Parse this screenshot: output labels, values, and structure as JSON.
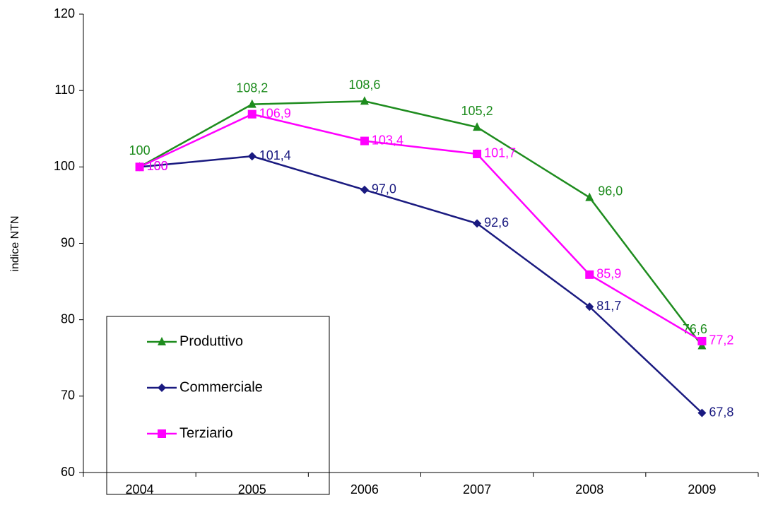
{
  "chart_data": {
    "type": "line",
    "y_label": "indice NTN",
    "categories": [
      "2004",
      "2005",
      "2006",
      "2007",
      "2008",
      "2009"
    ],
    "series": [
      {
        "name": "Produttivo",
        "color": "#1e8c1e",
        "values": [
          100,
          108.2,
          108.6,
          105.2,
          96.0,
          76.6
        ],
        "value_labels": [
          "100",
          "108,2",
          "108,6",
          "105,2",
          "96,0",
          "76,6"
        ]
      },
      {
        "name": "Commerciale",
        "color": "#1a1a80",
        "values": [
          100,
          101.4,
          97.0,
          92.6,
          81.7,
          67.8
        ],
        "value_labels": [
          "100",
          "101,4",
          "97,0",
          "92,6",
          "81,7",
          "67,8"
        ]
      },
      {
        "name": "Terziario",
        "color": "#ff00ff",
        "values": [
          100,
          106.9,
          103.4,
          101.7,
          85.9,
          77.2
        ],
        "value_labels": [
          "100",
          "106,9",
          "103,4",
          "101,7",
          "85,9",
          "77,2"
        ]
      }
    ],
    "ylim": [
      60,
      120
    ],
    "yticks": [
      60,
      70,
      80,
      90,
      100,
      110,
      120
    ],
    "grid": false
  }
}
